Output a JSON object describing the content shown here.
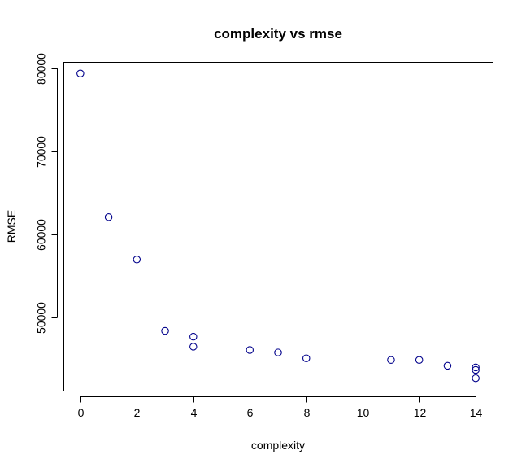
{
  "chart_data": {
    "type": "scatter",
    "title": "complexity vs rmse",
    "xlabel": "complexity",
    "ylabel": "RMSE",
    "xlim": [
      -0.6,
      14.6
    ],
    "ylim": [
      41200,
      80800
    ],
    "xticks": [
      0,
      2,
      4,
      6,
      8,
      10,
      12,
      14
    ],
    "xtick_labels": [
      "0",
      "2",
      "4",
      "6",
      "8",
      "10",
      "12",
      "14"
    ],
    "yticks": [
      50000,
      60000,
      70000,
      80000
    ],
    "ytick_labels": [
      "50000",
      "60000",
      "70000",
      "80000"
    ],
    "grid": false,
    "marker": "open-circle",
    "point_color": "#00008b",
    "series": [
      {
        "x": [
          0,
          1,
          2,
          3,
          4,
          4,
          6,
          7,
          8,
          11,
          12,
          13,
          14,
          14,
          14
        ],
        "y": [
          79400,
          62100,
          57000,
          48400,
          47700,
          46500,
          46100,
          45800,
          45100,
          44900,
          44900,
          44200,
          44000,
          43700,
          42700
        ]
      }
    ]
  }
}
